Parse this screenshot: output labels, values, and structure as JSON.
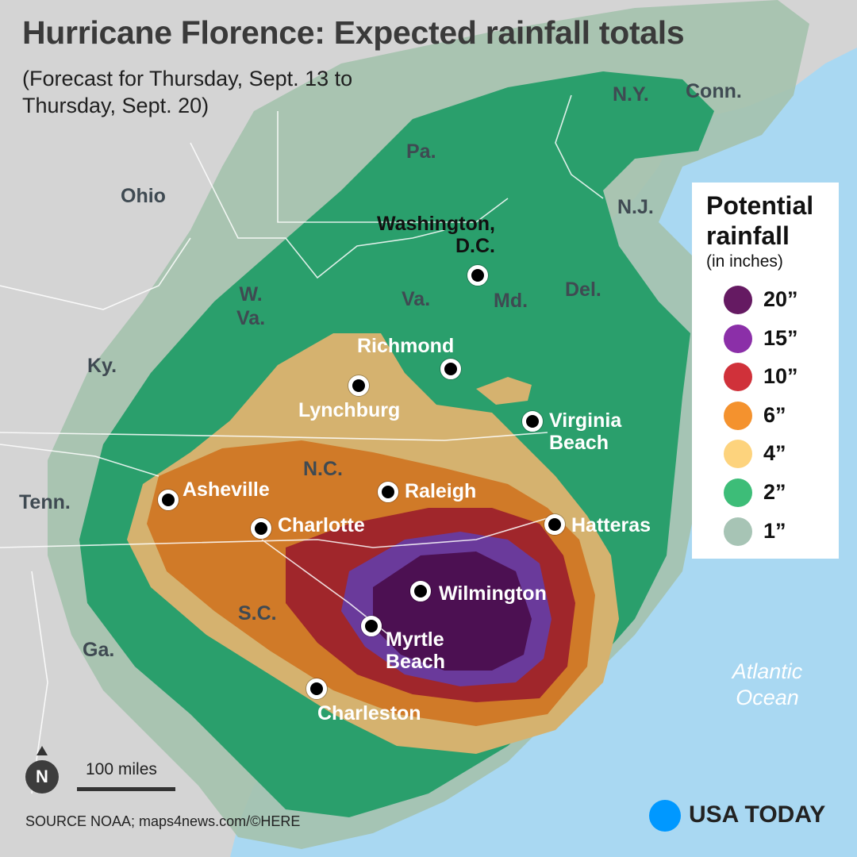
{
  "title": "Hurricane Florence: Expected rainfall totals",
  "subtitle": "(Forecast for Thursday, Sept. 13 to\nThursday, Sept. 20)",
  "colors": {
    "land": "#d4d4d4",
    "ocean": "#a9d8f2",
    "r1": "#a4c2ad",
    "r2": "#2a9f6c",
    "r4": "#d5b26f",
    "r6": "#d07a28",
    "r10": "#a0262b",
    "r15": "#6a3a9b",
    "r20": "#4c1052"
  },
  "legend": {
    "title": "Potential\nrainfall",
    "subtitle": "(in inches)",
    "items": [
      {
        "label": "20”",
        "color": "#651a62"
      },
      {
        "label": "15”",
        "color": "#8b2fa8"
      },
      {
        "label": "10”",
        "color": "#d0313a"
      },
      {
        "label": "6”",
        "color": "#f4922e"
      },
      {
        "label": "4”",
        "color": "#fdd37d"
      },
      {
        "label": "2”",
        "color": "#3dbd78"
      },
      {
        "label": "1”",
        "color": "#a7c4b5"
      }
    ]
  },
  "states": {
    "ny": "N.Y.",
    "conn": "Conn.",
    "pa": "Pa.",
    "ohio": "Ohio",
    "nj": "N.J.",
    "wva": "W.\nVa.",
    "va": "Va.",
    "md": "Md.",
    "del": "Del.",
    "ky": "Ky.",
    "nc": "N.C.",
    "tenn": "Tenn.",
    "sc": "S.C.",
    "ga": "Ga."
  },
  "cities": {
    "washington": "Washington,\nD.C.",
    "richmond": "Richmond",
    "lynchburg": "Lynchburg",
    "virginia_beach": "Virginia\nBeach",
    "asheville": "Asheville",
    "raleigh": "Raleigh",
    "charlotte": "Charlotte",
    "hatteras": "Hatteras",
    "wilmington": "Wilmington",
    "myrtle_beach": "Myrtle\nBeach",
    "charleston": "Charleston"
  },
  "ocean_label": "Atlantic\nOcean",
  "north": "N",
  "scale": "100 miles",
  "source": "SOURCE NOAA; maps4news.com/©HERE",
  "brand": "USA TODAY"
}
